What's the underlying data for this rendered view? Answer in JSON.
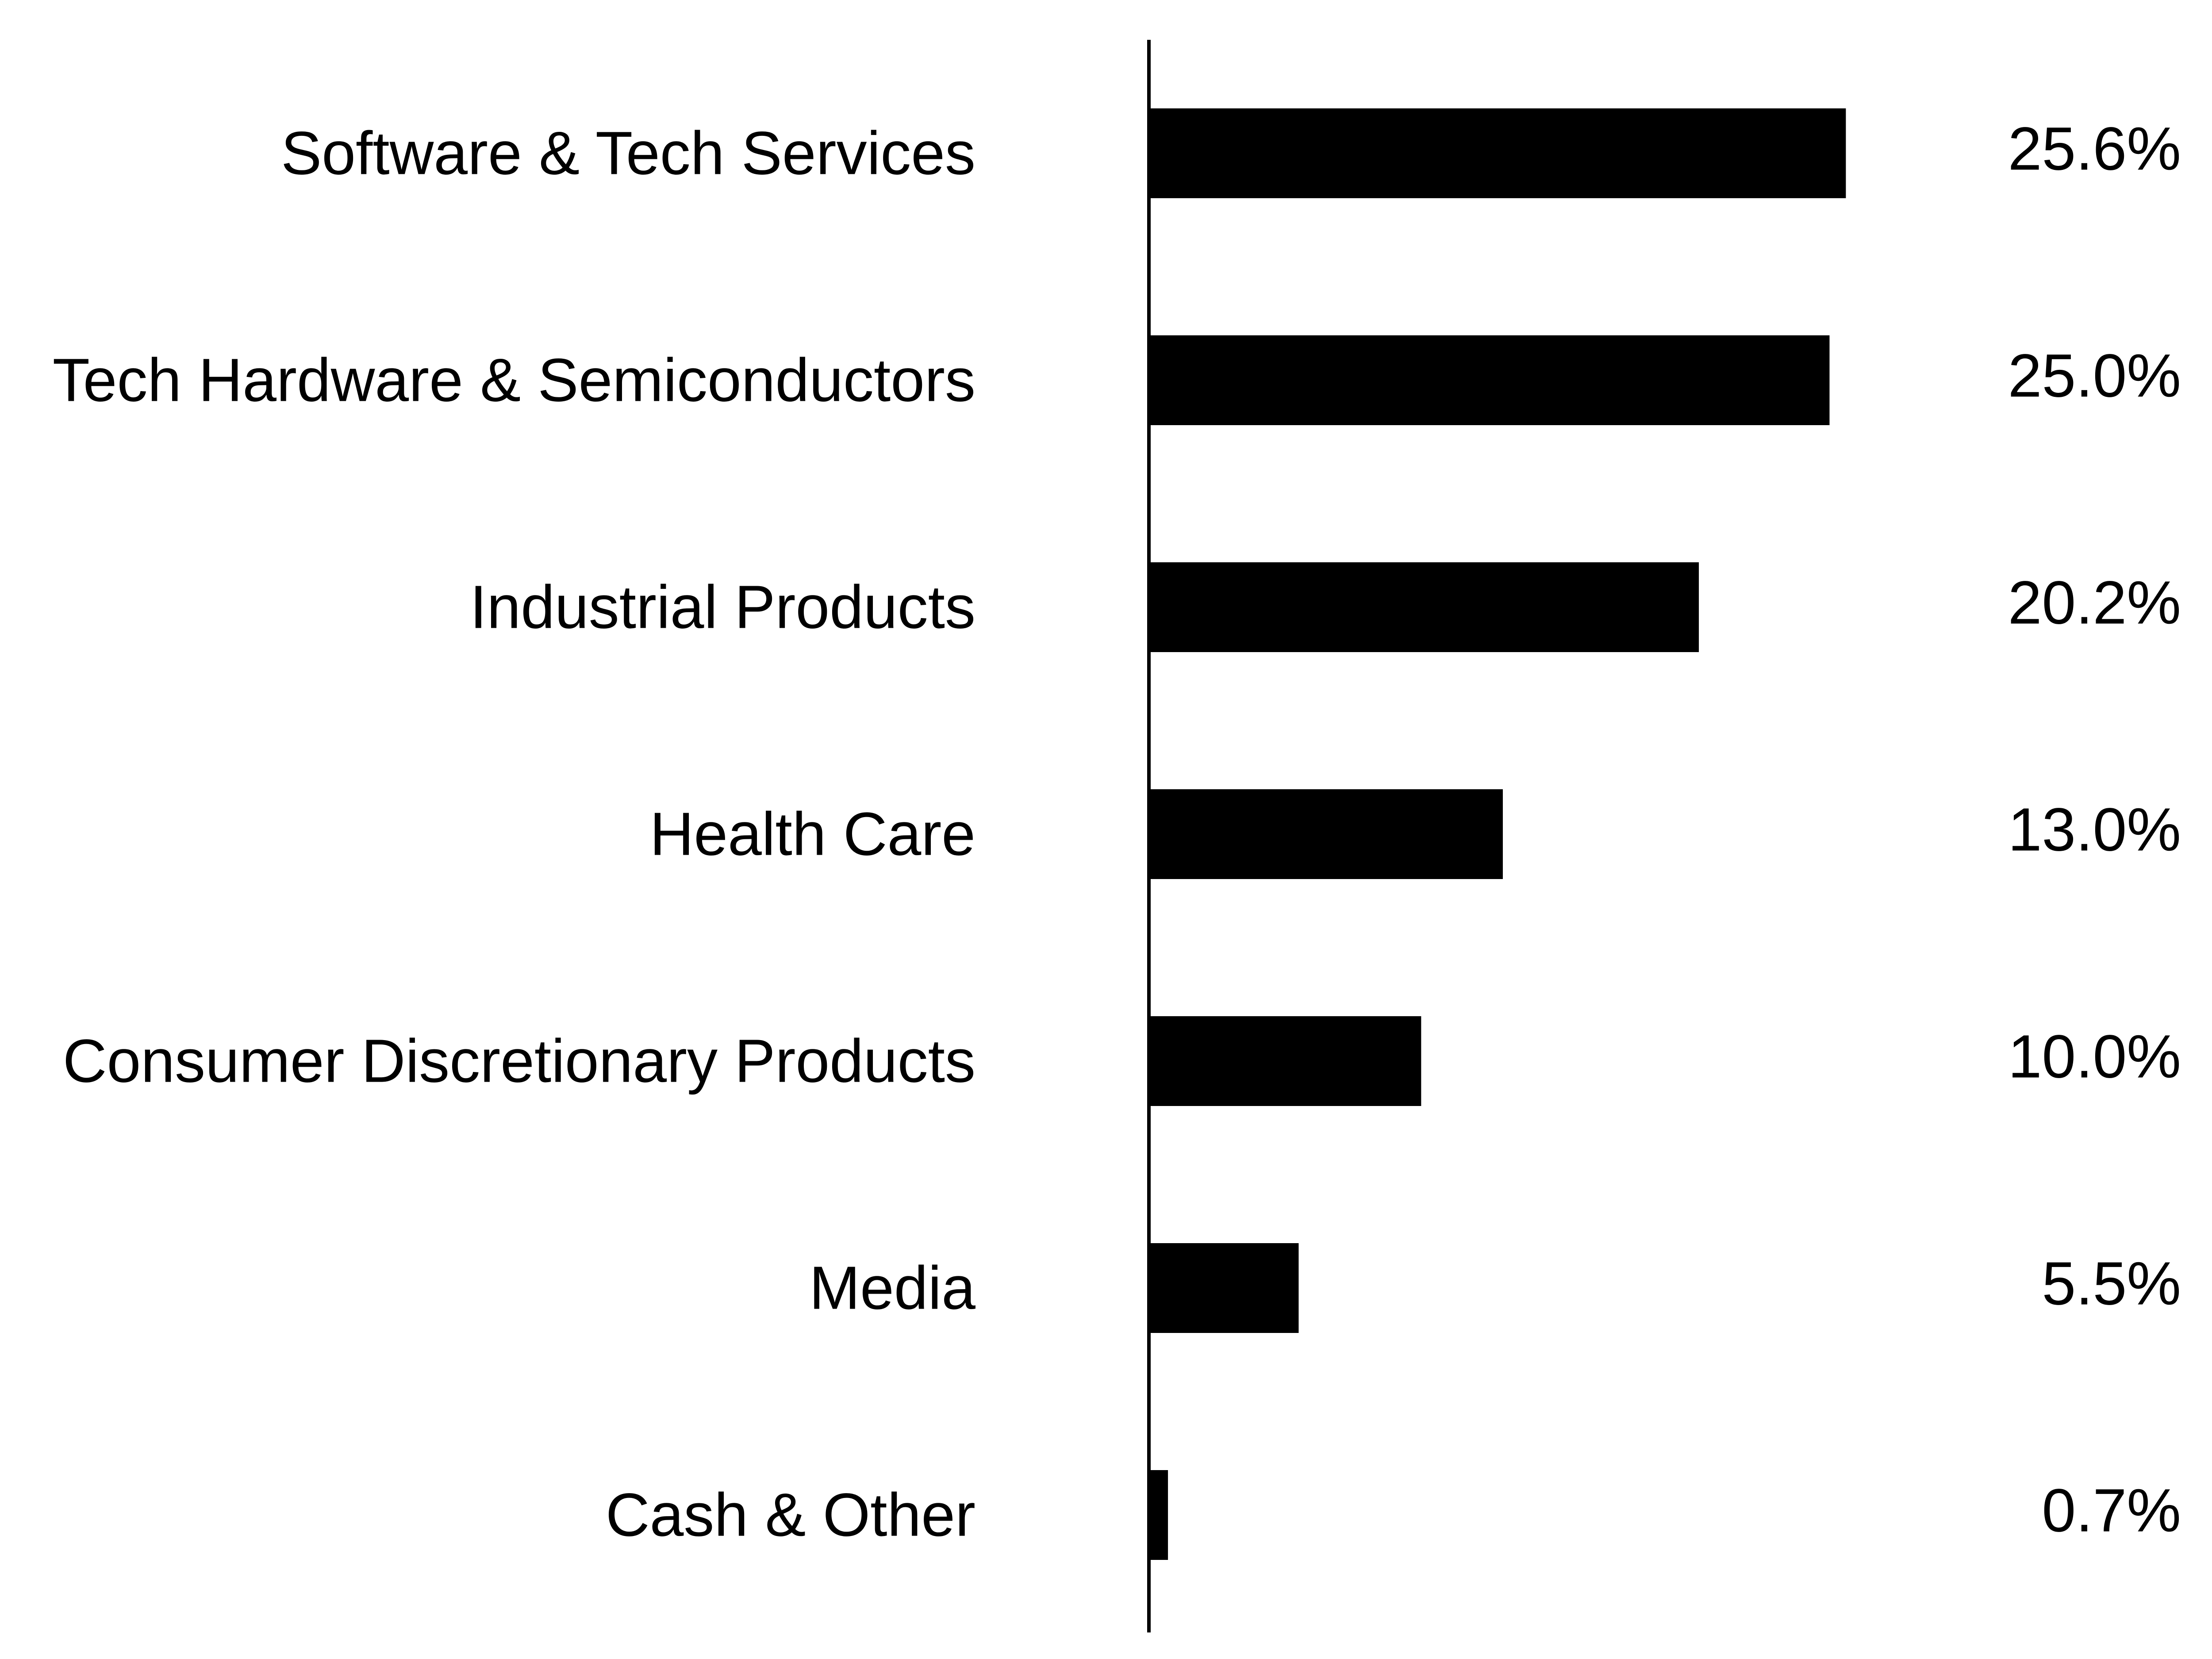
{
  "chart_data": {
    "type": "bar",
    "orientation": "horizontal",
    "categories": [
      "Software & Tech Services",
      "Tech Hardware & Semiconductors",
      "Industrial Products",
      "Health Care",
      "Consumer Discretionary Products",
      "Media",
      "Cash & Other"
    ],
    "values": [
      25.6,
      25.0,
      20.2,
      13.0,
      10.0,
      5.5,
      0.7
    ],
    "value_labels": [
      "25.6%",
      "25.0%",
      "20.2%",
      "13.0%",
      "10.0%",
      "5.5%",
      "0.7%"
    ],
    "xlim": [
      0,
      27.3
    ],
    "grid": false,
    "legend": "none",
    "bar_color": "#000000"
  }
}
